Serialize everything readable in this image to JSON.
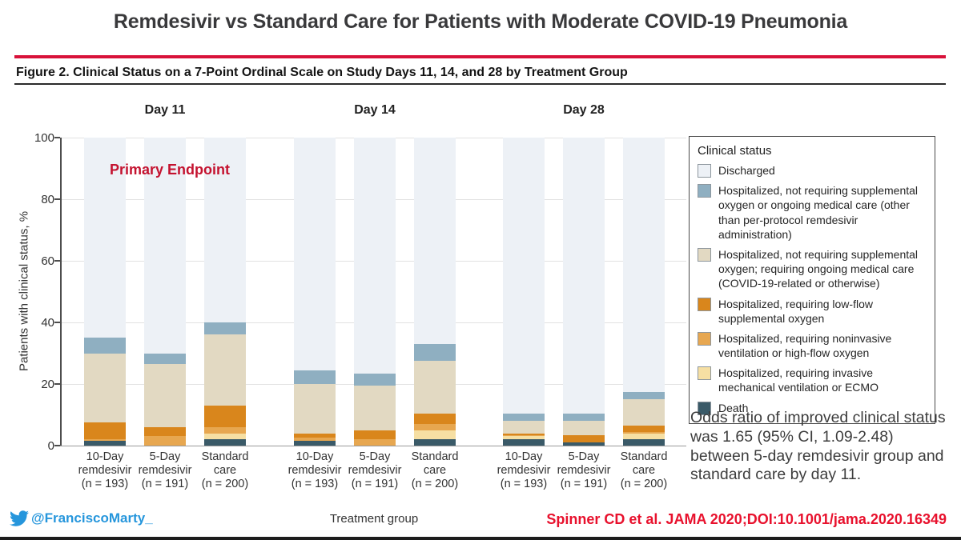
{
  "slide": {
    "title": "Remdesivir vs Standard Care for Patients with Moderate COVID-19 Pneumonia",
    "figure_caption": "Figure 2. Clinical Status on a 7-Point Ordinal Scale on Study Days 11, 14, and 28 by Treatment Group",
    "annotation": "Primary Endpoint",
    "odds_note": "Odds ratio of improved clinical status was 1.65 (95% CI, 1.09-2.48) between 5-day remdesivir group and standard care by day 11.",
    "citation": "Spinner CD et al. JAMA 2020;DOI:10.1001/jama.2020.16349",
    "twitter_handle": "@FranciscoMarty_",
    "colors": {
      "accent_rule_red": "#d8123a",
      "annotation_red": "#c4122f",
      "citation_red": "#e8112d",
      "twitter_blue": "#2696dc",
      "bottom_bar": "#1c1c1c"
    }
  },
  "legend": {
    "title": "Clinical status",
    "items": [
      {
        "key": "discharged",
        "label": "Discharged",
        "color": "#edf1f6"
      },
      {
        "key": "hospitalized_no_care",
        "label": "Hospitalized, not requiring supplemental oxygen or ongoing medical care (other than per-protocol remdesivir administration)",
        "color": "#8fafc1"
      },
      {
        "key": "hospitalized_ongoing_care",
        "label": "Hospitalized, not requiring supplemental oxygen; requiring ongoing medical care (COVID-19-related or otherwise)",
        "color": "#e2d9c2"
      },
      {
        "key": "low_flow_oxygen",
        "label": "Hospitalized, requiring low-flow supplemental oxygen",
        "color": "#d9861c"
      },
      {
        "key": "noninvasive_ventilation",
        "label": "Hospitalized, requiring noninvasive ventilation or high-flow oxygen",
        "color": "#e7a750"
      },
      {
        "key": "invasive_ventilation",
        "label": "Hospitalized, requiring invasive mechanical ventilation or ECMO",
        "color": "#f6dfa3"
      },
      {
        "key": "death",
        "label": "Death",
        "color": "#3a5a68"
      }
    ]
  },
  "chart_data": {
    "type": "stacked-bar-percent",
    "title": "Clinical Status on a 7-Point Ordinal Scale on Study Days 11, 14, and 28 by Treatment Group",
    "ylabel": "Patients with clinical status, %",
    "xlabel": "Treatment group",
    "ylim": [
      0,
      100
    ],
    "yticks": [
      0,
      20,
      40,
      60,
      80,
      100
    ],
    "grid": "horizontal",
    "legend_position": "right",
    "stack_order_bottom_to_top": [
      "death",
      "invasive_ventilation",
      "noninvasive_ventilation",
      "low_flow_oxygen",
      "hospitalized_ongoing_care",
      "hospitalized_no_care",
      "discharged"
    ],
    "groups": [
      {
        "label": "Day 11",
        "bars": [
          {
            "name": "10-Day remdesivir",
            "n": 193,
            "label_lines": [
              "10-Day",
              "remdesivir",
              "(n = 193)"
            ],
            "values": {
              "discharged": 65,
              "hospitalized_no_care": 5,
              "hospitalized_ongoing_care": 22.5,
              "low_flow_oxygen": 5.5,
              "noninvasive_ventilation": 0.5,
              "invasive_ventilation": 0,
              "death": 1.5
            }
          },
          {
            "name": "5-Day remdesivir",
            "n": 191,
            "label_lines": [
              "5-Day",
              "remdesivir",
              "(n = 191)"
            ],
            "values": {
              "discharged": 70,
              "hospitalized_no_care": 3.5,
              "hospitalized_ongoing_care": 20.5,
              "low_flow_oxygen": 3,
              "noninvasive_ventilation": 3,
              "invasive_ventilation": 0,
              "death": 0
            }
          },
          {
            "name": "Standard care",
            "n": 200,
            "label_lines": [
              "Standard",
              "care",
              "(n = 200)"
            ],
            "values": {
              "discharged": 60,
              "hospitalized_no_care": 4,
              "hospitalized_ongoing_care": 23,
              "low_flow_oxygen": 7,
              "noninvasive_ventilation": 2,
              "invasive_ventilation": 2,
              "death": 2
            }
          }
        ]
      },
      {
        "label": "Day 14",
        "bars": [
          {
            "name": "10-Day remdesivir",
            "n": 193,
            "label_lines": [
              "10-Day",
              "remdesivir",
              "(n = 193)"
            ],
            "values": {
              "discharged": 75.5,
              "hospitalized_no_care": 4.5,
              "hospitalized_ongoing_care": 16,
              "low_flow_oxygen": 1.5,
              "noninvasive_ventilation": 1,
              "invasive_ventilation": 0,
              "death": 1.5
            }
          },
          {
            "name": "5-Day remdesivir",
            "n": 191,
            "label_lines": [
              "5-Day",
              "remdesivir",
              "(n = 191)"
            ],
            "values": {
              "discharged": 76.5,
              "hospitalized_no_care": 4,
              "hospitalized_ongoing_care": 14.5,
              "low_flow_oxygen": 3,
              "noninvasive_ventilation": 2,
              "invasive_ventilation": 0,
              "death": 0
            }
          },
          {
            "name": "Standard care",
            "n": 200,
            "label_lines": [
              "Standard",
              "care",
              "(n = 200)"
            ],
            "values": {
              "discharged": 67,
              "hospitalized_no_care": 5.5,
              "hospitalized_ongoing_care": 17,
              "low_flow_oxygen": 3.5,
              "noninvasive_ventilation": 2,
              "invasive_ventilation": 3,
              "death": 2
            }
          }
        ]
      },
      {
        "label": "Day 28",
        "bars": [
          {
            "name": "10-Day remdesivir",
            "n": 193,
            "label_lines": [
              "10-Day",
              "remdesivir",
              "(n = 193)"
            ],
            "values": {
              "discharged": 89.5,
              "hospitalized_no_care": 2.5,
              "hospitalized_ongoing_care": 4,
              "low_flow_oxygen": 0.5,
              "noninvasive_ventilation": 0.5,
              "invasive_ventilation": 1,
              "death": 2
            }
          },
          {
            "name": "5-Day remdesivir",
            "n": 191,
            "label_lines": [
              "5-Day",
              "remdesivir",
              "(n = 191)"
            ],
            "values": {
              "discharged": 89.5,
              "hospitalized_no_care": 2.5,
              "hospitalized_ongoing_care": 4.5,
              "low_flow_oxygen": 2.5,
              "noninvasive_ventilation": 0,
              "invasive_ventilation": 0,
              "death": 1
            }
          },
          {
            "name": "Standard care",
            "n": 200,
            "label_lines": [
              "Standard",
              "care",
              "(n = 200)"
            ],
            "values": {
              "discharged": 82.5,
              "hospitalized_no_care": 2.5,
              "hospitalized_ongoing_care": 8.5,
              "low_flow_oxygen": 2,
              "noninvasive_ventilation": 0.5,
              "invasive_ventilation": 2,
              "death": 2
            }
          }
        ]
      }
    ]
  }
}
